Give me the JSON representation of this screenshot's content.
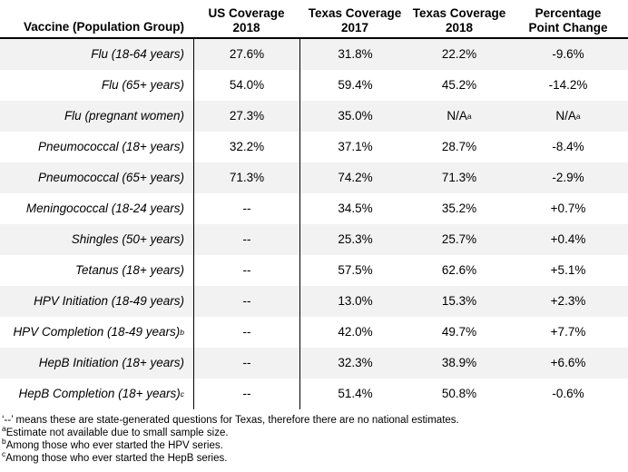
{
  "table": {
    "columns": [
      {
        "id": "vaccine",
        "label": "Vaccine (Population Group)"
      },
      {
        "id": "us_2018",
        "label": "US Coverage\n2018"
      },
      {
        "id": "tx_2017",
        "label": "Texas Coverage\n2017"
      },
      {
        "id": "tx_2018",
        "label": "Texas Coverage\n2018"
      },
      {
        "id": "change",
        "label": "Percentage\nPoint Change"
      }
    ],
    "rows": [
      {
        "vaccine": "Flu (18-64 years)",
        "us_2018": "27.6%",
        "tx_2017": "31.8%",
        "tx_2018": "22.2%",
        "change": "-9.6%"
      },
      {
        "vaccine": "Flu (65+ years)",
        "us_2018": "54.0%",
        "tx_2017": "59.4%",
        "tx_2018": "45.2%",
        "change": "-14.2%"
      },
      {
        "vaccine": "Flu (pregnant women)",
        "us_2018": "27.3%",
        "tx_2017": "35.0%",
        "tx_2018": "N/A^a",
        "change": "N/A^a"
      },
      {
        "vaccine": "Pneumococcal (18+ years)",
        "us_2018": "32.2%",
        "tx_2017": "37.1%",
        "tx_2018": "28.7%",
        "change": "-8.4%"
      },
      {
        "vaccine": "Pneumococcal (65+ years)",
        "us_2018": "71.3%",
        "tx_2017": "74.2%",
        "tx_2018": "71.3%",
        "change": "-2.9%"
      },
      {
        "vaccine": "Meningococcal (18-24 years)",
        "us_2018": "--",
        "tx_2017": "34.5%",
        "tx_2018": "35.2%",
        "change": "+0.7%"
      },
      {
        "vaccine": "Shingles (50+ years)",
        "us_2018": "--",
        "tx_2017": "25.3%",
        "tx_2018": "25.7%",
        "change": "+0.4%"
      },
      {
        "vaccine": "Tetanus (18+ years)",
        "us_2018": "--",
        "tx_2017": "57.5%",
        "tx_2018": "62.6%",
        "change": "+5.1%"
      },
      {
        "vaccine": "HPV Initiation (18-49 years)",
        "us_2018": "--",
        "tx_2017": "13.0%",
        "tx_2018": "15.3%",
        "change": "+2.3%"
      },
      {
        "vaccine": "HPV Completion (18-49 years)^b",
        "us_2018": "--",
        "tx_2017": "42.0%",
        "tx_2018": "49.7%",
        "change": "+7.7%"
      },
      {
        "vaccine": "HepB Initiation (18+ years)",
        "us_2018": "--",
        "tx_2017": "32.3%",
        "tx_2018": "38.9%",
        "change": "+6.6%"
      },
      {
        "vaccine": "HepB Completion (18+ years)^c",
        "us_2018": "--",
        "tx_2017": "51.4%",
        "tx_2018": "50.8%",
        "change": "-0.6%"
      }
    ],
    "banded_row_indexes": [
      0,
      2,
      4,
      6,
      8,
      10
    ],
    "footnotes": [
      "‘--’ means these are state-generated questions for Texas, therefore there are no national estimates.",
      "^aEstimate not available due to small sample size.",
      "^bAmong those who ever started the HPV series.",
      "^cAmong those who ever started the HepB series."
    ]
  },
  "colors": {
    "banding": "#f2f2f2",
    "rule": "#000000",
    "text": "#000000",
    "background": "#ffffff"
  }
}
